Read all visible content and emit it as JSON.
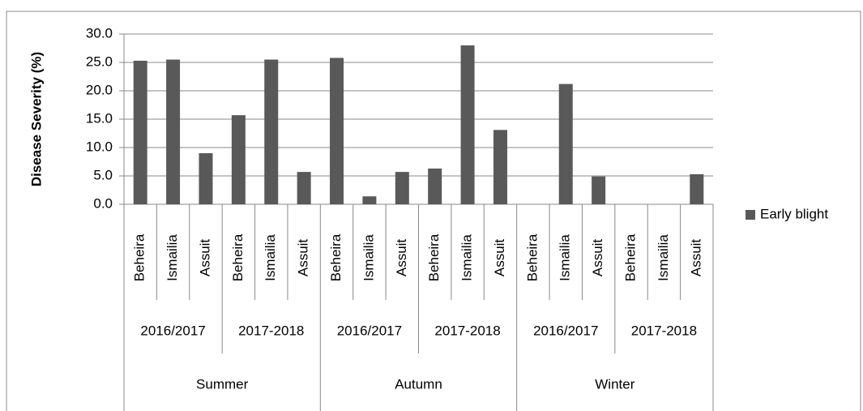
{
  "chart_data": {
    "type": "bar",
    "y_label": "Disease Severity (%)",
    "categories": [
      "Beheira",
      "Ismailia",
      "Assuit",
      "Beheira",
      "Ismailia",
      "Assuit",
      "Beheira",
      "Ismailia",
      "Assuit",
      "Beheira",
      "Ismailia",
      "Assuit",
      "Beheira",
      "Ismailia",
      "Assuit",
      "Beheira",
      "Ismailia",
      "Assuit"
    ],
    "years": [
      "2016/2017",
      "2017-2018",
      "2016/2017",
      "2017-2018",
      "2016/2017",
      "2017-2018"
    ],
    "seasons": [
      "Summer",
      "Autumn",
      "Winter"
    ],
    "series": [
      {
        "name": "Early blight",
        "color": "#595959",
        "values": [
          25.3,
          25.5,
          9.0,
          15.7,
          25.5,
          5.7,
          25.8,
          1.4,
          5.7,
          6.3,
          28.0,
          13.1,
          0,
          21.2,
          4.9,
          0,
          0,
          5.3
        ]
      }
    ],
    "ylim": [
      0,
      30
    ],
    "yticks": [
      {
        "value": 0,
        "label": "0.0"
      },
      {
        "value": 5,
        "label": "5.0"
      },
      {
        "value": 10,
        "label": "10.0"
      },
      {
        "value": 15,
        "label": "15.0"
      },
      {
        "value": 20,
        "label": "20.0"
      },
      {
        "value": 25,
        "label": "25.0"
      },
      {
        "value": 30,
        "label": "30.0"
      }
    ],
    "grid": true,
    "legend": "right"
  }
}
